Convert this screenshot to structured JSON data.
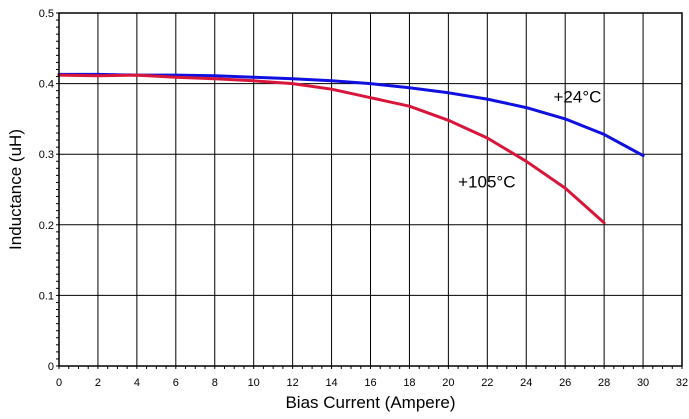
{
  "chart_data": {
    "type": "line",
    "xlabel": "Bias Current (Ampere)",
    "ylabel": "Inductance (uH)",
    "xlim": [
      0,
      32
    ],
    "ylim": [
      0,
      0.5
    ],
    "x_ticks": [
      "0",
      "2",
      "4",
      "6",
      "8",
      "10",
      "12",
      "14",
      "16",
      "18",
      "20",
      "22",
      "24",
      "26",
      "28",
      "30",
      "32"
    ],
    "y_ticks": [
      "0",
      "0.1",
      "0.2",
      "0.3",
      "0.4",
      "0.5"
    ],
    "grid": true,
    "series": [
      {
        "color": "#1010e0",
        "x": [
          0,
          2,
          4,
          6,
          8,
          10,
          12,
          14,
          16,
          18,
          20,
          22,
          24,
          26,
          28,
          30
        ],
        "y": [
          0.413,
          0.413,
          0.412,
          0.412,
          0.411,
          0.409,
          0.407,
          0.404,
          0.4,
          0.394,
          0.387,
          0.378,
          0.366,
          0.35,
          0.328,
          0.298
        ]
      },
      {
        "color": "#d8163a",
        "x": [
          0,
          2,
          4,
          6,
          8,
          10,
          12,
          14,
          16,
          18,
          20,
          22,
          24,
          26,
          28
        ],
        "y": [
          0.412,
          0.411,
          0.412,
          0.409,
          0.407,
          0.404,
          0.4,
          0.392,
          0.38,
          0.368,
          0.348,
          0.323,
          0.29,
          0.252,
          0.203
        ]
      }
    ],
    "annotations": [
      {
        "text": "+24°C",
        "x": 25.4,
        "y": 0.373
      },
      {
        "text": "+105°C",
        "x": 20.5,
        "y": 0.253
      }
    ]
  }
}
